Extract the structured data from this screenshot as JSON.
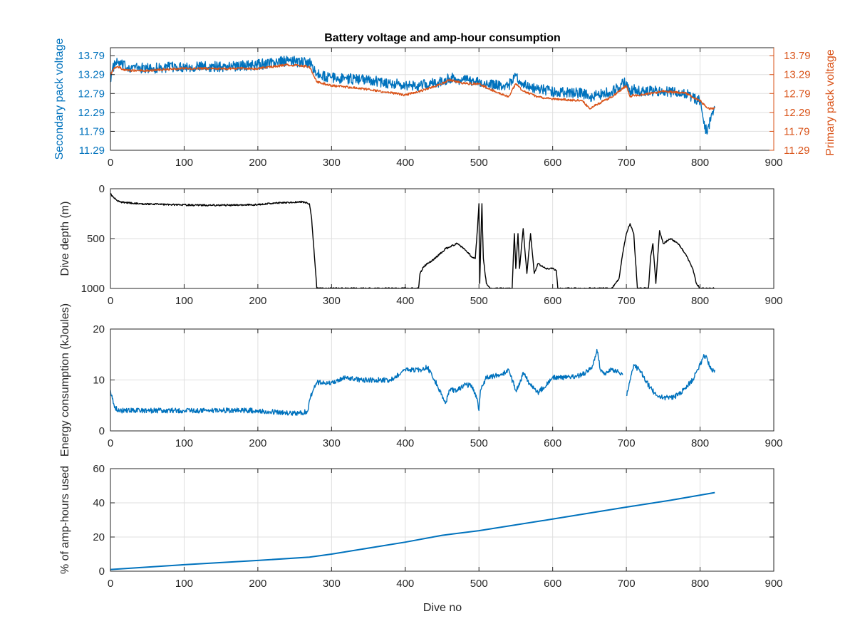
{
  "chart_data": [
    {
      "type": "line",
      "title": "Battery voltage and amp-hour consumption",
      "xlabel": "",
      "xlim": [
        0,
        900
      ],
      "xticks": [
        0,
        100,
        200,
        300,
        400,
        500,
        600,
        700,
        800,
        900
      ],
      "ylabel": "Secondary pack voltage",
      "ylim": [
        11.29,
        14.0
      ],
      "yticks": [
        "11.29",
        "11.79",
        "12.29",
        "12.79",
        "13.29",
        "13.79"
      ],
      "ylabel_right": "Primary pack voltage",
      "yticks_right": [
        "11.29",
        "11.79",
        "12.29",
        "12.79",
        "13.29",
        "13.79"
      ],
      "grid": true,
      "series": [
        {
          "name": "Secondary pack voltage",
          "color": "#0072bd",
          "axis": "left",
          "noise": 0.14,
          "x": [
            0,
            5,
            10,
            20,
            50,
            100,
            150,
            200,
            240,
            270,
            280,
            300,
            350,
            400,
            420,
            450,
            460,
            480,
            500,
            510,
            540,
            550,
            560,
            580,
            600,
            640,
            650,
            660,
            680,
            700,
            705,
            710,
            720,
            750,
            780,
            800,
            805,
            810,
            815,
            820
          ],
          "y": [
            13.2,
            13.55,
            13.6,
            13.5,
            13.45,
            13.5,
            13.5,
            13.55,
            13.65,
            13.6,
            13.3,
            13.2,
            13.15,
            13.0,
            13.0,
            13.1,
            13.2,
            13.15,
            13.1,
            13.05,
            13.0,
            13.25,
            13.05,
            12.9,
            12.85,
            12.8,
            12.7,
            12.75,
            12.85,
            13.1,
            12.8,
            12.9,
            12.85,
            12.85,
            12.8,
            12.6,
            12.0,
            11.75,
            12.2,
            12.4
          ]
        },
        {
          "name": "Primary pack voltage",
          "color": "#d95319",
          "axis": "right",
          "noise": 0.03,
          "x": [
            0,
            5,
            10,
            20,
            50,
            100,
            150,
            200,
            240,
            270,
            280,
            300,
            350,
            400,
            420,
            450,
            460,
            480,
            500,
            510,
            540,
            550,
            560,
            580,
            600,
            640,
            650,
            660,
            680,
            700,
            705,
            710,
            720,
            750,
            780,
            800,
            805,
            810,
            815,
            820
          ],
          "y": [
            13.3,
            13.45,
            13.5,
            13.4,
            13.4,
            13.45,
            13.45,
            13.45,
            13.55,
            13.5,
            13.1,
            13.0,
            12.9,
            12.75,
            12.85,
            13.05,
            13.15,
            13.05,
            13.05,
            12.95,
            12.7,
            13.05,
            12.85,
            12.7,
            12.65,
            12.6,
            12.4,
            12.5,
            12.7,
            13.0,
            12.7,
            12.75,
            12.75,
            12.85,
            12.8,
            12.6,
            12.5,
            12.4,
            12.4,
            12.4
          ]
        }
      ]
    },
    {
      "type": "line",
      "title": "",
      "xlabel": "",
      "xlim": [
        0,
        900
      ],
      "xticks": [
        0,
        100,
        200,
        300,
        400,
        500,
        600,
        700,
        800,
        900
      ],
      "ylabel": "Dive depth (m)",
      "ylim": [
        0,
        1000
      ],
      "y_reversed": true,
      "yticks": [
        "0",
        "500",
        "1000"
      ],
      "grid": true,
      "series": [
        {
          "color": "#000000",
          "noise": 8,
          "x": [
            0,
            3,
            8,
            12,
            20,
            40,
            80,
            120,
            160,
            200,
            220,
            260,
            270,
            273,
            278,
            280,
            285,
            300,
            350,
            400,
            418,
            420,
            425,
            440,
            455,
            470,
            480,
            490,
            495,
            498,
            500,
            501,
            504,
            506,
            510,
            515,
            520,
            540,
            545,
            548,
            550,
            553,
            555,
            560,
            565,
            570,
            575,
            580,
            590,
            600,
            605,
            607,
            610,
            620,
            660,
            680,
            685,
            690,
            695,
            700,
            705,
            710,
            715,
            718,
            720,
            730,
            733,
            736,
            740,
            745,
            750,
            760,
            770,
            775,
            780,
            790,
            795,
            800,
            805,
            810,
            815,
            820
          ],
          "y": [
            50,
            80,
            110,
            130,
            140,
            150,
            160,
            165,
            165,
            160,
            145,
            130,
            150,
            300,
            800,
            1000,
            1000,
            1000,
            1000,
            1000,
            1000,
            850,
            780,
            700,
            600,
            550,
            600,
            680,
            700,
            400,
            150,
            950,
            150,
            700,
            950,
            1000,
            1000,
            1000,
            1000,
            450,
            800,
            450,
            800,
            400,
            850,
            450,
            850,
            750,
            800,
            800,
            820,
            1000,
            1000,
            1000,
            1000,
            1000,
            950,
            900,
            650,
            450,
            350,
            450,
            1000,
            1000,
            1000,
            1000,
            680,
            550,
            950,
            420,
            550,
            500,
            550,
            600,
            650,
            800,
            950,
            1000,
            1000,
            1000,
            1000,
            1000
          ]
        }
      ]
    },
    {
      "type": "line",
      "title": "",
      "xlabel": "",
      "xlim": [
        0,
        900
      ],
      "xticks": [
        0,
        100,
        200,
        300,
        400,
        500,
        600,
        700,
        800,
        900
      ],
      "ylabel": "Energy consumption (kJoules)",
      "ylim": [
        0,
        20
      ],
      "yticks": [
        "0",
        "10",
        "20"
      ],
      "grid": true,
      "series": [
        {
          "color": "#0072bd",
          "noise": 0.5,
          "x": [
            0,
            2,
            5,
            10,
            20,
            50,
            100,
            150,
            200,
            240,
            260,
            268,
            270,
            275,
            280,
            300,
            320,
            340,
            350,
            380,
            400,
            420,
            430,
            440,
            450,
            455,
            460,
            470,
            480,
            490,
            498,
            500,
            502,
            510,
            530,
            540,
            550,
            555,
            560,
            570,
            580,
            600,
            620,
            640,
            650,
            655,
            660,
            665,
            670,
            680,
            690,
            695,
            null,
            700,
            705,
            710,
            720,
            730,
            740,
            750,
            760,
            770,
            780,
            790,
            800,
            805,
            810,
            815,
            820
          ],
          "y": [
            8,
            7,
            5,
            4,
            4,
            4,
            4,
            4,
            4,
            3.5,
            3.5,
            4,
            6,
            8,
            9.5,
            9.5,
            10.5,
            10,
            10,
            10,
            12,
            12,
            12.5,
            10,
            7,
            5.5,
            8,
            8,
            9,
            9,
            6,
            4,
            8,
            10.5,
            11,
            12,
            8,
            9,
            11.5,
            9,
            7.5,
            10.5,
            10.5,
            11,
            12,
            13,
            16,
            12,
            11,
            12,
            11.5,
            11,
            null,
            7,
            10,
            13,
            11.5,
            9,
            7,
            6.5,
            6.5,
            7,
            8.5,
            10,
            13,
            15,
            14,
            12,
            12
          ]
        }
      ]
    },
    {
      "type": "line",
      "title": "",
      "xlabel": "Dive no",
      "xlim": [
        0,
        900
      ],
      "xticks": [
        0,
        100,
        200,
        300,
        400,
        500,
        600,
        700,
        800,
        900
      ],
      "ylabel": "% of amp-hours used",
      "ylim": [
        0,
        60
      ],
      "yticks": [
        "0",
        "20",
        "40",
        "60"
      ],
      "grid": true,
      "series": [
        {
          "color": "#0072bd",
          "noise": 0,
          "x": [
            0,
            100,
            200,
            270,
            300,
            400,
            450,
            500,
            600,
            700,
            760,
            820
          ],
          "y": [
            1,
            3.8,
            6.3,
            8.2,
            10,
            17,
            21,
            23.7,
            30.5,
            37.5,
            41.5,
            46
          ]
        }
      ]
    }
  ]
}
